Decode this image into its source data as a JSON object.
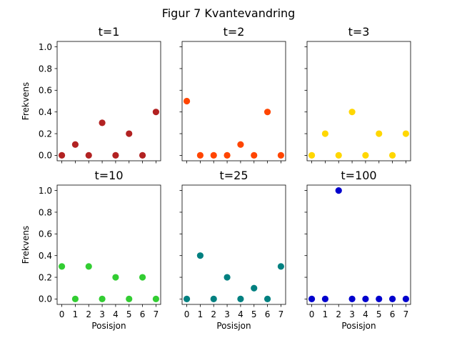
{
  "chart_data": {
    "type": "scatter",
    "suptitle": "Figur 7 Kvantevandring",
    "xlabel": "Posisjon",
    "ylabel": "Frekvens",
    "x": [
      0,
      1,
      2,
      3,
      4,
      5,
      6,
      7
    ],
    "xticks": [
      "0",
      "1",
      "2",
      "3",
      "4",
      "5",
      "6",
      "7"
    ],
    "yticks": [
      "0.0",
      "0.2",
      "0.4",
      "0.6",
      "0.8",
      "1.0"
    ],
    "ylim": [
      -0.05,
      1.05
    ],
    "xlim": [
      -0.35,
      7.35
    ],
    "grid": false,
    "layout": "2x3 subplots, shared x and y axes",
    "panels": [
      {
        "title": "t=1",
        "color": "#b22222",
        "values": [
          0.0,
          0.1,
          0.0,
          0.3,
          0.0,
          0.2,
          0.0,
          0.4
        ]
      },
      {
        "title": "t=2",
        "color": "#ff4500",
        "values": [
          0.5,
          0.0,
          0.0,
          0.0,
          0.1,
          0.0,
          0.4,
          0.0
        ]
      },
      {
        "title": "t=3",
        "color": "#ffd700",
        "values": [
          0.0,
          0.2,
          0.0,
          0.4,
          0.0,
          0.2,
          0.0,
          0.2
        ]
      },
      {
        "title": "t=10",
        "color": "#32cd32",
        "values": [
          0.3,
          0.0,
          0.3,
          0.0,
          0.2,
          0.0,
          0.2,
          0.0
        ]
      },
      {
        "title": "t=25",
        "color": "#008080",
        "values": [
          0.0,
          0.4,
          0.0,
          0.2,
          0.0,
          0.1,
          0.0,
          0.3
        ]
      },
      {
        "title": "t=100",
        "color": "#0000cd",
        "values": [
          0.0,
          0.0,
          1.0,
          0.0,
          0.0,
          0.0,
          0.0,
          0.0
        ]
      }
    ]
  }
}
